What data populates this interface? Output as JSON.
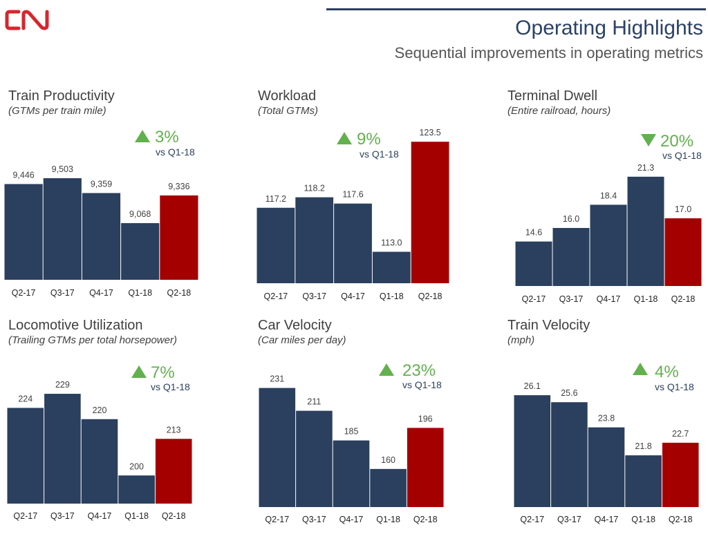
{
  "header": {
    "logo_text": "CN",
    "title": "Operating Highlights",
    "subtitle": "Sequential improvements in operating metrics"
  },
  "colors": {
    "bar": "#2b3f5e",
    "highlight": "#a50000",
    "positive": "#62b04e",
    "logo": "#d7262e"
  },
  "chart_data": [
    {
      "type": "bar",
      "title": "Train Productivity",
      "subtitle": "(GTMs per train mile)",
      "categories": [
        "Q2-17",
        "Q3-17",
        "Q4-17",
        "Q1-18",
        "Q2-18"
      ],
      "values": [
        9446,
        9503,
        9359,
        9068,
        9336
      ],
      "labels": [
        "9,446",
        "9,503",
        "9,359",
        "9,068",
        "9,336"
      ],
      "ylim": [
        8520,
        9890
      ],
      "change": {
        "direction": "up",
        "value": "3%",
        "compare": "vs Q1-18"
      }
    },
    {
      "type": "bar",
      "title": "Workload",
      "subtitle": "(Total GTMs)",
      "categories": [
        "Q2-17",
        "Q3-17",
        "Q4-17",
        "Q1-18",
        "Q2-18"
      ],
      "values": [
        117.2,
        118.2,
        117.6,
        113.0,
        123.5
      ],
      "labels": [
        "117.2",
        "118.2",
        "117.6",
        "113.0",
        "123.5"
      ],
      "ylim": [
        110,
        124.5
      ],
      "change": {
        "direction": "up",
        "value": "9%",
        "compare": "vs Q1-18"
      }
    },
    {
      "type": "bar",
      "title": "Terminal Dwell",
      "subtitle": "(Entire railroad, hours)",
      "categories": [
        "Q2-17",
        "Q3-17",
        "Q4-17",
        "Q1-18",
        "Q2-18"
      ],
      "values": [
        14.6,
        16.0,
        18.4,
        21.3,
        17.0
      ],
      "labels": [
        "14.6",
        "16.0",
        "18.4",
        "21.3",
        "17.0"
      ],
      "ylim": [
        10,
        22.5
      ],
      "change": {
        "direction": "down",
        "value": "20%",
        "compare": "vs Q1-18"
      }
    },
    {
      "type": "bar",
      "title": "Locomotive Utilization",
      "subtitle": "(Trailing GTMs per total horsepower)",
      "categories": [
        "Q2-17",
        "Q3-17",
        "Q4-17",
        "Q1-18",
        "Q2-18"
      ],
      "values": [
        224,
        229,
        220,
        200,
        213
      ],
      "labels": [
        "224",
        "229",
        "220",
        "200",
        "213"
      ],
      "ylim": [
        190,
        230
      ],
      "change": {
        "direction": "up",
        "value": "7%",
        "compare": "vs Q1-18"
      }
    },
    {
      "type": "bar",
      "title": "Car Velocity",
      "subtitle": "(Car miles per day)",
      "categories": [
        "Q2-17",
        "Q3-17",
        "Q4-17",
        "Q1-18",
        "Q2-18"
      ],
      "values": [
        231,
        211,
        185,
        160,
        196
      ],
      "labels": [
        "231",
        "211",
        "185",
        "160",
        "196"
      ],
      "ylim": [
        126.6,
        235
      ],
      "change": {
        "direction": "up",
        "value": "23%",
        "compare": "vs Q1-18"
      }
    },
    {
      "type": "bar",
      "title": "Train Velocity",
      "subtitle": "(mph)",
      "categories": [
        "Q2-17",
        "Q3-17",
        "Q4-17",
        "Q1-18",
        "Q2-18"
      ],
      "values": [
        26.1,
        25.6,
        23.8,
        21.8,
        22.7
      ],
      "labels": [
        "26.1",
        "25.6",
        "23.8",
        "21.8",
        "22.7"
      ],
      "ylim": [
        18.1,
        26.5
      ],
      "change": {
        "direction": "up",
        "value": "4%",
        "compare": "vs Q1-18"
      }
    }
  ]
}
